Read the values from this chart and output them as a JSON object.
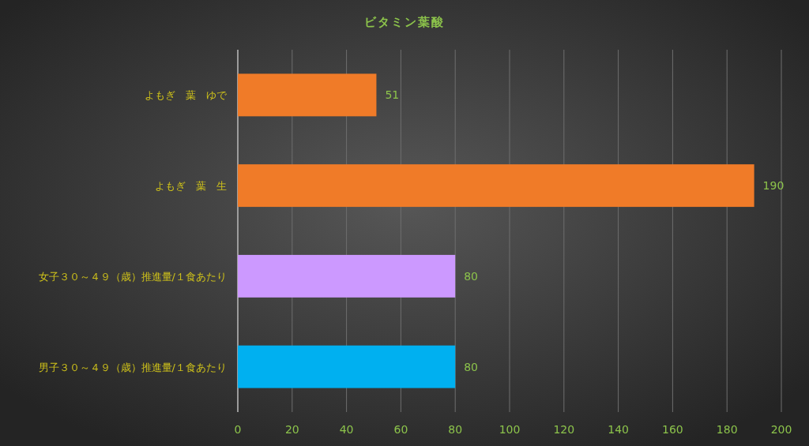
{
  "chart_data": {
    "type": "bar",
    "orientation": "horizontal",
    "title": "ビタミン葉酸",
    "categories": [
      "よもぎ　葉　ゆで",
      "よもぎ　葉　生",
      "女子３０～４９（歳）推進量/１食あたり",
      "男子３０～４９（歳）推進量/１食あたり"
    ],
    "values": [
      51,
      190,
      80,
      80
    ],
    "colors": [
      "#f07b28",
      "#f07b28",
      "#cc99ff",
      "#00b0f0"
    ],
    "xlim": [
      0,
      200
    ],
    "xticks": [
      0,
      20,
      40,
      60,
      80,
      100,
      120,
      140,
      160,
      180,
      200
    ],
    "grid": "x",
    "data_labels": true
  }
}
